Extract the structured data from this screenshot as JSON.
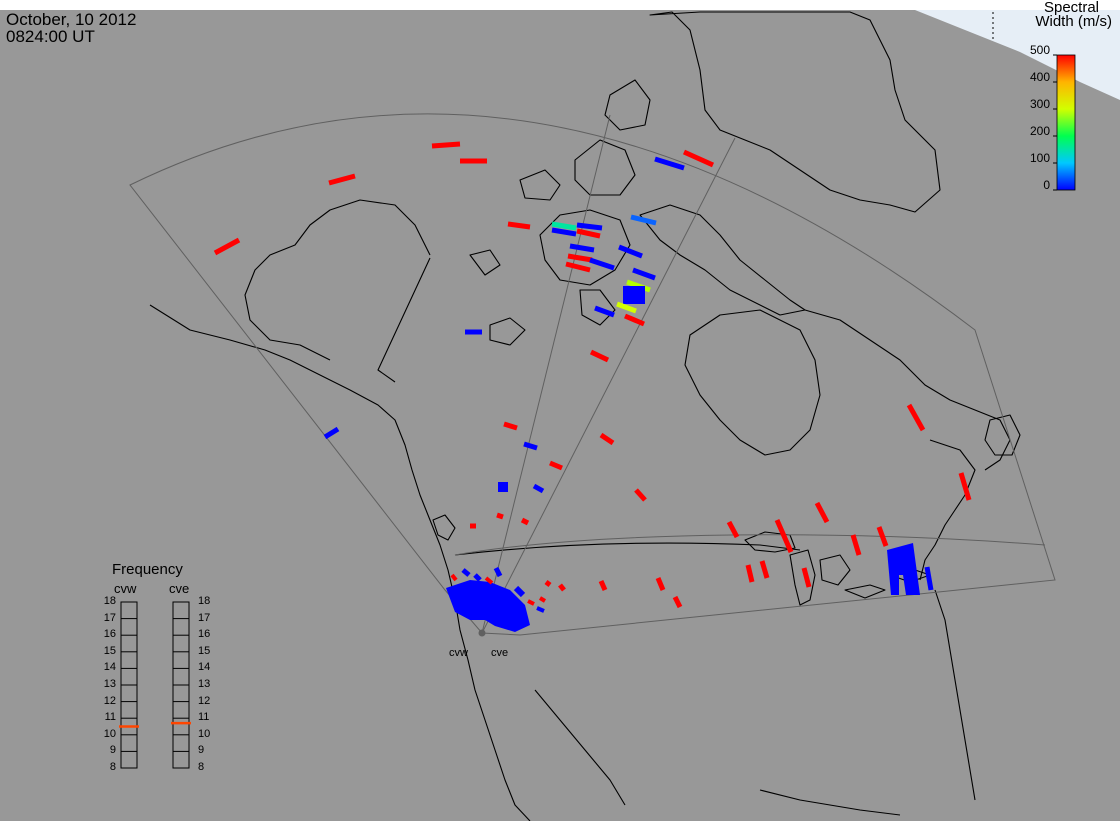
{
  "header": {
    "date": "October, 10 2012",
    "time": "0824:00 UT"
  },
  "colorbar": {
    "title_line1": "Spectral",
    "title_line2": "Width (m/s)",
    "ticks": [
      "500",
      "400",
      "300",
      "200",
      "100",
      "0"
    ],
    "range": [
      0,
      500
    ],
    "colors": [
      "#0000ff",
      "#00c8ff",
      "#00ff50",
      "#d2ff00",
      "#ffb400",
      "#ff0000"
    ]
  },
  "radars": {
    "west": "cvw",
    "east": "cve"
  },
  "frequency_panel": {
    "title": "Frequency",
    "west_label": "cvw",
    "east_label": "cve",
    "ticks": [
      "18",
      "17",
      "16",
      "15",
      "14",
      "13",
      "12",
      "11",
      "10",
      "9",
      "8"
    ],
    "range_mhz": [
      8,
      18
    ],
    "cvw_mhz": 10.5,
    "cve_mhz": 10.7,
    "marker_color": "#ff4500"
  },
  "map": {
    "background": "#989898",
    "line_color": "#000000",
    "fov_color": "#606060",
    "polar_cap_color": "#e8f0f8"
  }
}
